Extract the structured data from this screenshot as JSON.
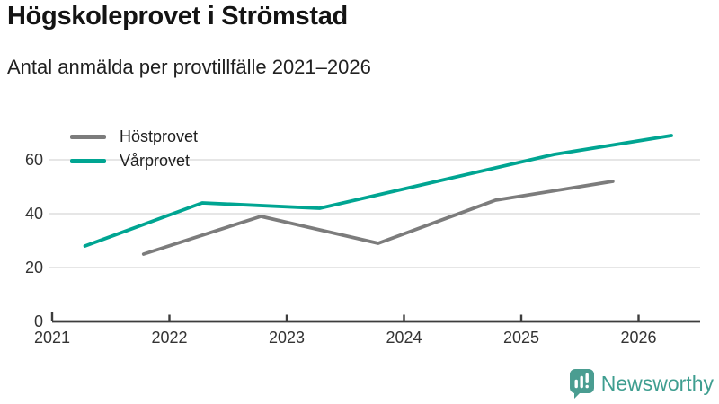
{
  "header": {
    "title": "Högskoleprovet i Strömstad",
    "subtitle": "Antal anmälda per provtillfälle 2021–2026"
  },
  "legend": [
    {
      "label": "Höstprovet",
      "color": "#7c7c7c"
    },
    {
      "label": "Vårprovet",
      "color": "#00a592"
    }
  ],
  "chart_data": {
    "type": "line",
    "title": "Högskoleprovet i Strömstad",
    "subtitle": "Antal anmälda per provtillfälle 2021–2026",
    "xlabel": "",
    "ylabel": "",
    "x_ticks": [
      2021,
      2022,
      2023,
      2024,
      2025,
      2026
    ],
    "y_ticks": [
      0,
      20,
      40,
      60
    ],
    "xlim": [
      2021,
      2026.55
    ],
    "ylim": [
      0,
      72
    ],
    "grid": "horizontal",
    "legend_position": "top-left",
    "series": [
      {
        "name": "Höstprovet",
        "color": "#7c7c7c",
        "x": [
          2021.78,
          2022.78,
          2023.78,
          2024.78,
          2025.78
        ],
        "values": [
          25,
          39,
          29,
          45,
          52
        ]
      },
      {
        "name": "Vårprovet",
        "color": "#00a592",
        "x": [
          2021.28,
          2022.28,
          2023.28,
          2024.28,
          2025.28,
          2026.28
        ],
        "values": [
          28,
          44,
          42,
          52,
          62,
          69
        ]
      }
    ]
  },
  "branding": {
    "logo_text": "Newsworthy",
    "logo_color": "#3f9e90",
    "logo_icon": "bar-chart-speech-bubble-icon"
  },
  "style": {
    "grid_color": "#dedede",
    "axis_color": "#3d3d3d",
    "tick_label_color": "#333333"
  }
}
